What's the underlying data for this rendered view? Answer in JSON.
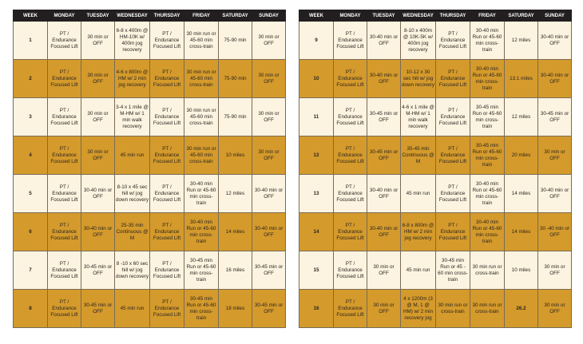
{
  "headers": [
    "WEEK",
    "MONDAY",
    "TUESDAY",
    "WEDNESDAY",
    "THURSDAY",
    "FRIDAY",
    "SATURDAY",
    "SUNDAY"
  ],
  "weeks": [
    {
      "week": "1",
      "mon": "PT / Endurance Focused Lift",
      "tue": "30 min or OFF",
      "wed": "6-8 x 400m @ HM-10K w/ 400m jog recovery",
      "thu": "PT / Endurance Focused Lift",
      "fri": "30 min run or 45-60 min cross-train",
      "sat": "75-90 min",
      "sun": "30 min or OFF"
    },
    {
      "week": "2",
      "mon": "PT / Endurance Focused Lift",
      "tue": "30 min or OFF",
      "wed": "4-6 x 800m @ HM w/ 2 min jog recovery",
      "thu": "PT / Endurance Focused Lift",
      "fri": "30 min run or 45-60 min cross-train",
      "sat": "75-90 min",
      "sun": "30 min or OFF"
    },
    {
      "week": "3",
      "mon": "PT / Endurance Focused Lift",
      "tue": "30 min or OFF",
      "wed": "3-4 x 1 mile @ M-HM w/ 1 min walk recovery",
      "thu": "PT / Endurance Focused Lift",
      "fri": "30 min run or 45-60 min cross-train",
      "sat": "75-90 min",
      "sun": "30 min or OFF"
    },
    {
      "week": "4",
      "mon": "PT / Endurance Focused Lift",
      "tue": "30 min or OFF",
      "wed": "45 min run",
      "thu": "PT / Endurance Focused Lift",
      "fri": "30 min run or 45-60 min cross-train",
      "sat": "10 miles",
      "sun": "30 min or OFF"
    },
    {
      "week": "5",
      "mon": "PT / Endurance Focused Lift",
      "tue": "30-40 min or OFF",
      "wed": "8-10 x 45 sec hill w/ jog down recovery",
      "thu": "PT / Endurance Focused Lift",
      "fri": "30-40 min Run or 45-60 min cross-train",
      "sat": "12 miles",
      "sun": "30-40 min or OFF"
    },
    {
      "week": "6",
      "mon": "PT / Endurance Focused Lift",
      "tue": "30-40 min or OFF",
      "wed": "25-35 min Continuous @ M",
      "thu": "PT / Endurance Focused Lift",
      "fri": "30-40 min Run or 45-60 min cross-train",
      "sat": "14 miles",
      "sun": "30-40 min or OFF"
    },
    {
      "week": "7",
      "mon": "PT / Endurance Focused Lift",
      "tue": "30-45 min or OFF",
      "wed": "8 -10 x 60 sec hill w/ jog down recovery",
      "thu": "PT / Endurance Focused Lift",
      "fri": "30-45 min Run or 45-60 min cross-train",
      "sat": "16 miles",
      "sun": "30-45 min or OFF"
    },
    {
      "week": "8",
      "mon": "PT / Endurance Focused Lift",
      "tue": "30-45 min or OFF",
      "wed": "45 min run",
      "thu": "PT / Endurance Focused Lift",
      "fri": "30-45 min Run or 45-60 min cross-train",
      "sat": "18 miles",
      "sun": "30-45 min or OFF"
    },
    {
      "week": "9",
      "mon": "PT / Endurance Focused Lift",
      "tue": "30-40 min or OFF",
      "wed": "8-10 x 400m @ 10K-5K w/ 400m jog recovery",
      "thu": "PT / Endurance Focused Lift",
      "fri": "30-40 min Run or 45-60 min cross-train",
      "sat": "12 miles",
      "sun": "30-40 min or OFF"
    },
    {
      "week": "10",
      "mon": "PT / Endurance Focused Lift",
      "tue": "30-40 min or OFF",
      "wed": "10-12 x 30 sec hill w/ jog down recovery",
      "thu": "PT / Endurance Focused Lift",
      "fri": "30-40 min Run or 45-60 min cross-train",
      "sat": "13.1 miles",
      "sun": "30-40 min or OFF"
    },
    {
      "week": "11",
      "mon": "PT / Endurance Focused Lift",
      "tue": "30-45 min or OFF",
      "wed": "4-6 x 1 mile @ M-HM w/ 1 min walk recovery",
      "thu": "PT / Endurance Focused Lift",
      "fri": "30-45 min Run or 45-60 min cross-train",
      "sat": "12 miles",
      "sun": "30-45 min or OFF"
    },
    {
      "week": "12",
      "mon": "PT / Endurance Focused Lift",
      "tue": "30-45 min or OFF",
      "wed": "35-45 min Continuous @ M",
      "thu": "PT / Endurance Focused Lift",
      "fri": "30-45 min Run or 45-60 min cross-train",
      "sat": "20 miles",
      "sun": "30 min or OFF"
    },
    {
      "week": "13",
      "mon": "PT / Endurance Focused Lift",
      "tue": "30-40 min or OFF",
      "wed": "45 min run",
      "thu": "PT / Endurance Focused Lift",
      "fri": "30-40 min Run or 45-60 min cross-train",
      "sat": "14 miles",
      "sun": "30-40 min or OFF"
    },
    {
      "week": "14",
      "mon": "PT / Endurance Focused Lift",
      "tue": "30-40 min or OFF",
      "wed": "6-8 x 800m @ HM w/ 2 min jog recovery",
      "thu": "PT / Endurance Focused Lift",
      "fri": "30-40 min Run or 45-60 min cross-train",
      "sat": "14 miles",
      "sun": "30 -40 min or OFF"
    },
    {
      "week": "15",
      "mon": "PT / Endurance Focused Lift",
      "tue": "30 min or OFF",
      "wed": "45 min run",
      "thu": "30-45 min Run or 45 - 60 min cross-train",
      "fri": "30 min run or cross-train",
      "sat": "10 miles",
      "sun": "30 min or OFF"
    },
    {
      "week": "16",
      "mon": "PT / Endurance Focused Lift",
      "tue": "30 min or OFF",
      "wed": "4 x 1200m (3 @ M, 1 @ HM) w/ 2 min recovery jog",
      "thu": "30 min run or cross-train",
      "fri": "30 min run or cross-train",
      "sat": "26.2",
      "sun": "30 min or OFF"
    }
  ]
}
